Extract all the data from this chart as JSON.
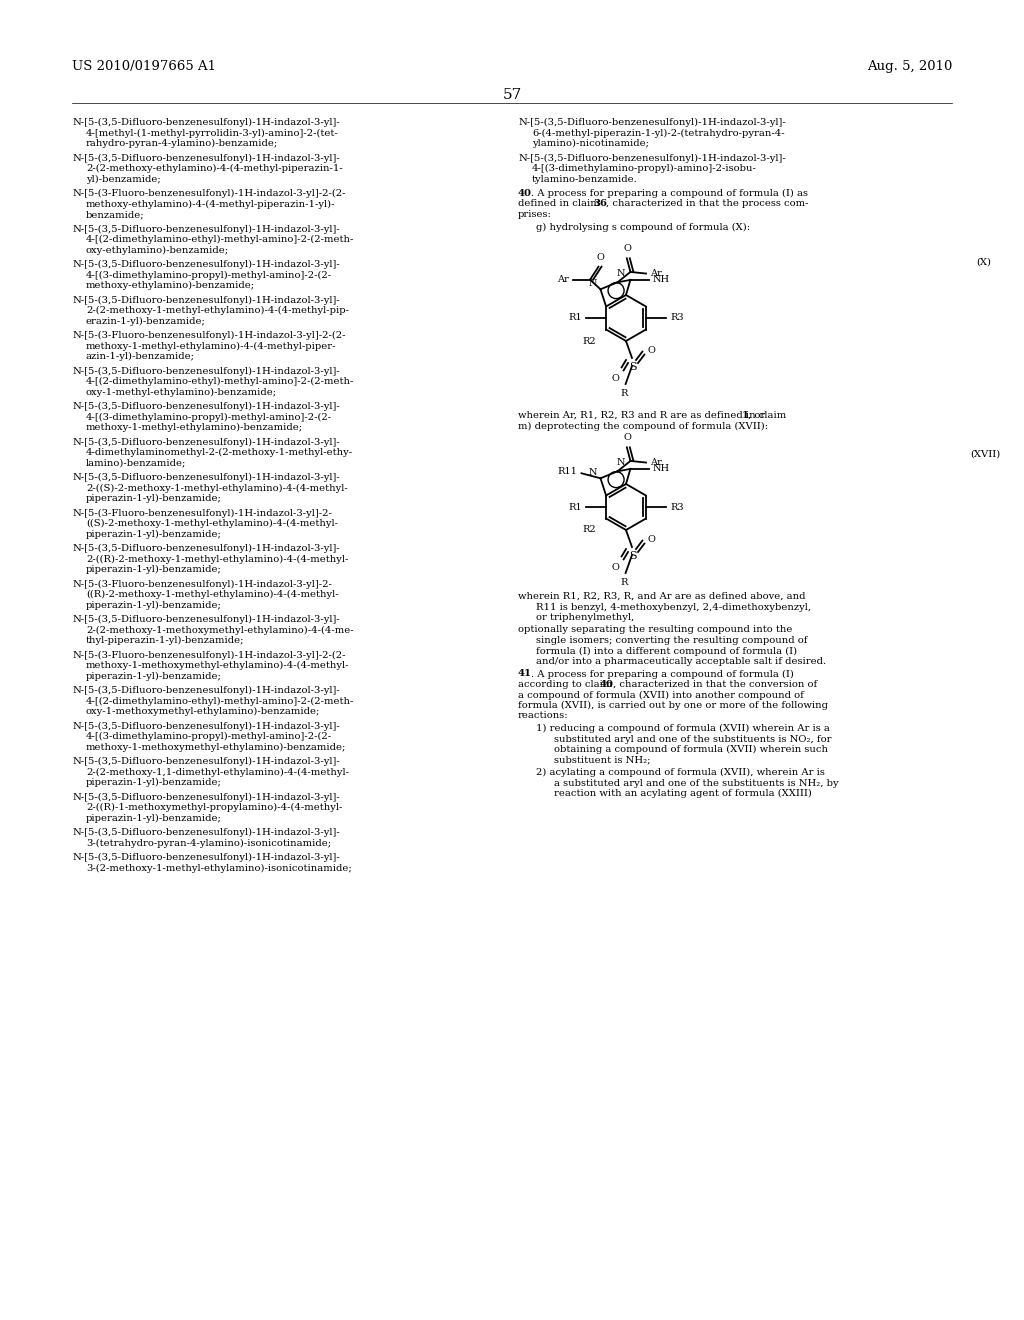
{
  "background_color": "#ffffff",
  "page_number": "57",
  "header_left": "US 2010/0197665 A1",
  "header_right": "Aug. 5, 2010",
  "left_col": [
    "N-[5-(3,5-Difluoro-benzenesulfonyl)-1H-indazol-3-yl]-\n    4-[methyl-(1-methyl-pyrrolidin-3-yl)-amino]-2-(tet-\n    rahydro-pyran-4-ylamino)-benzamide;",
    "N-[5-(3,5-Difluoro-benzenesulfonyl)-1H-indazol-3-yl]-\n    2-(2-methoxy-ethylamino)-4-(4-methyl-piperazin-1-\n    yl)-benzamide;",
    "N-[5-(3-Fluoro-benzenesulfonyl)-1H-indazol-3-yl]-2-(2-\n    methoxy-ethylamino)-4-(4-methyl-piperazin-1-yl)-\n    benzamide;",
    "N-[5-(3,5-Difluoro-benzenesulfonyl)-1H-indazol-3-yl]-\n    4-[(2-dimethylamino-ethyl)-methyl-amino]-2-(2-meth-\n    oxy-ethylamino)-benzamide;",
    "N-[5-(3,5-Difluoro-benzenesulfonyl)-1H-indazol-3-yl]-\n    4-[(3-dimethylamino-propyl)-methyl-amino]-2-(2-\n    methoxy-ethylamino)-benzamide;",
    "N-[5-(3,5-Difluoro-benzenesulfonyl)-1H-indazol-3-yl]-\n    2-(2-methoxy-1-methyl-ethylamino)-4-(4-methyl-pip-\n    erazin-1-yl)-benzamide;",
    "N-[5-(3-Fluoro-benzenesulfonyl)-1H-indazol-3-yl]-2-(2-\n    methoxy-1-methyl-ethylamino)-4-(4-methyl-piper-\n    azin-1-yl)-benzamide;",
    "N-[5-(3,5-Difluoro-benzenesulfonyl)-1H-indazol-3-yl]-\n    4-[(2-dimethylamino-ethyl)-methyl-amino]-2-(2-meth-\n    oxy-1-methyl-ethylamino)-benzamide;",
    "N-[5-(3,5-Difluoro-benzenesulfonyl)-1H-indazol-3-yl]-\n    4-[(3-dimethylamino-propyl)-methyl-amino]-2-(2-\n    methoxy-1-methyl-ethylamino)-benzamide;",
    "N-[5-(3,5-Difluoro-benzenesulfonyl)-1H-indazol-3-yl]-\n    4-dimethylaminomethyl-2-(2-methoxy-1-methyl-ethy-\n    lamino)-benzamide;",
    "N-[5-(3,5-Difluoro-benzenesulfonyl)-1H-indazol-3-yl]-\n    2-((S)-2-methoxy-1-methyl-ethylamino)-4-(4-methyl-\n    piperazin-1-yl)-benzamide;",
    "N-[5-(3-Fluoro-benzenesulfonyl)-1H-indazol-3-yl]-2-\n    ((S)-2-methoxy-1-methyl-ethylamino)-4-(4-methyl-\n    piperazin-1-yl)-benzamide;",
    "N-[5-(3,5-Difluoro-benzenesulfonyl)-1H-indazol-3-yl]-\n    2-((R)-2-methoxy-1-methyl-ethylamino)-4-(4-methyl-\n    piperazin-1-yl)-benzamide;",
    "N-[5-(3-Fluoro-benzenesulfonyl)-1H-indazol-3-yl]-2-\n    ((R)-2-methoxy-1-methyl-ethylamino)-4-(4-methyl-\n    piperazin-1-yl)-benzamide;",
    "N-[5-(3,5-Difluoro-benzenesulfonyl)-1H-indazol-3-yl]-\n    2-(2-methoxy-1-methoxymethyl-ethylamino)-4-(4-me-\n    thyl-piperazin-1-yl)-benzamide;",
    "N-[5-(3-Fluoro-benzenesulfonyl)-1H-indazol-3-yl]-2-(2-\n    methoxy-1-methoxymethyl-ethylamino)-4-(4-methyl-\n    piperazin-1-yl)-benzamide;",
    "N-[5-(3,5-Difluoro-benzenesulfonyl)-1H-indazol-3-yl]-\n    4-[(2-dimethylamino-ethyl)-methyl-amino]-2-(2-meth-\n    oxy-1-methoxymethyl-ethylamino)-benzamide;",
    "N-[5-(3,5-Difluoro-benzenesulfonyl)-1H-indazol-3-yl]-\n    4-[(3-dimethylamino-propyl)-methyl-amino]-2-(2-\n    methoxy-1-methoxymethyl-ethylamino)-benzamide;",
    "N-[5-(3,5-Difluoro-benzenesulfonyl)-1H-indazol-3-yl]-\n    2-(2-methoxy-1,1-dimethyl-ethylamino)-4-(4-methyl-\n    piperazin-1-yl)-benzamide;",
    "N-[5-(3,5-Difluoro-benzenesulfonyl)-1H-indazol-3-yl]-\n    2-((R)-1-methoxymethyl-propylamino)-4-(4-methyl-\n    piperazin-1-yl)-benzamide;",
    "N-[5-(3,5-Difluoro-benzenesulfonyl)-1H-indazol-3-yl]-\n    3-(tetrahydro-pyran-4-ylamino)-isonicotinamide;",
    "N-[5-(3,5-Difluoro-benzenesulfonyl)-1H-indazol-3-yl]-\n    3-(2-methoxy-1-methyl-ethylamino)-isonicotinamide;"
  ],
  "right_top": [
    "N-[5-(3,5-Difluoro-benzenesulfonyl)-1H-indazol-3-yl]-\n    6-(4-methyl-piperazin-1-yl)-2-(tetrahydro-pyran-4-\n    ylamino)-nicotinamide;",
    "N-[5-(3,5-Difluoro-benzenesulfonyl)-1H-indazol-3-yl]-\n    4-[(3-dimethylamino-propyl)-amino]-2-isobu-\n    tylamino-benzamide."
  ],
  "formula_X_label": "(X)",
  "formula_XVII_label": "(XVII)"
}
